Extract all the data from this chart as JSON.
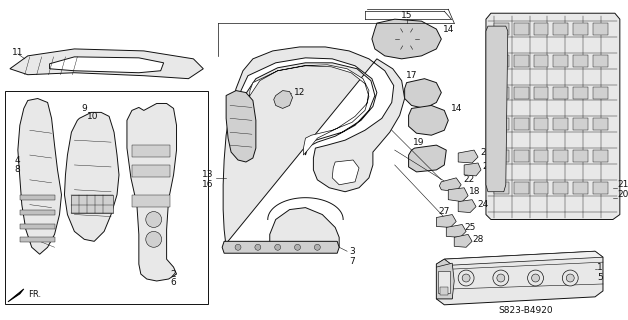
{
  "background_color": "#ffffff",
  "diagram_code": "S823-B4920",
  "fig_width": 6.28,
  "fig_height": 3.2,
  "dpi": 100,
  "line_color": "#111111",
  "fill_light": "#e8e8e8",
  "fill_mid": "#d0d0d0",
  "fill_dark": "#b0b0b0"
}
